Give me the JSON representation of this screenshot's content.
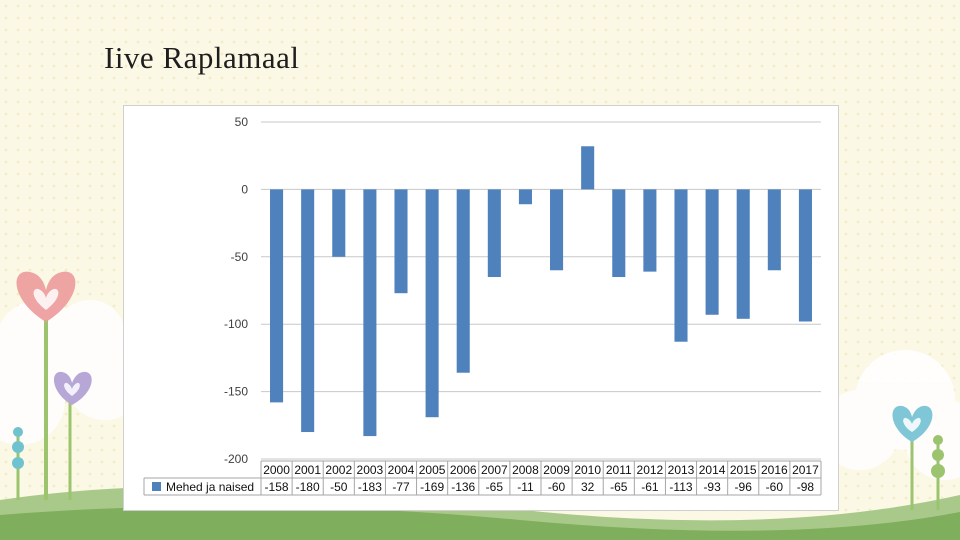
{
  "slide": {
    "title": "Iive Raplamaal"
  },
  "colors": {
    "bar": "#4f81bd",
    "grid": "#c8c8c8",
    "background": "#fcf8e6"
  },
  "chart_data": {
    "type": "bar",
    "title": "",
    "xlabel": "",
    "ylabel": "",
    "ylim": [
      -200,
      50
    ],
    "yticks": [
      50,
      0,
      -50,
      -100,
      -150,
      -200
    ],
    "grid": true,
    "legend": "data-table-left",
    "categories": [
      "2000",
      "2001",
      "2002",
      "2003",
      "2004",
      "2005",
      "2006",
      "2007",
      "2008",
      "2009",
      "2010",
      "2011",
      "2012",
      "2013",
      "2014",
      "2015",
      "2016",
      "2017"
    ],
    "series": [
      {
        "name": "Mehed ja naised",
        "values": [
          -158,
          -180,
          -50,
          -183,
          -77,
          -169,
          -136,
          -65,
          -11,
          -60,
          32,
          -65,
          -61,
          -113,
          -93,
          -96,
          -60,
          -98
        ]
      }
    ]
  }
}
